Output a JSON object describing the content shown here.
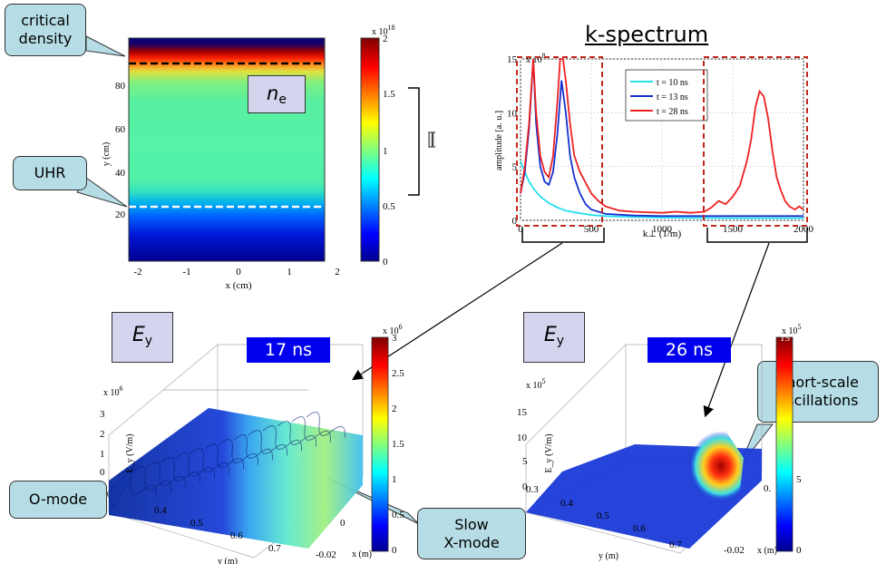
{
  "density_panel": {
    "label_base": "n",
    "label_sub": "e",
    "y_label": "y (cm)",
    "x_label": "x (cm)",
    "x_ticks": [
      "-2",
      "-1",
      "0",
      "1",
      "2"
    ],
    "y_ticks": [
      "20",
      "40",
      "60",
      "80"
    ],
    "colorbar_ticks": [
      "0",
      "0.5",
      "1",
      "1.5",
      "2"
    ],
    "colorbar_scale_base": "x 10",
    "colorbar_scale_exp": "18"
  },
  "callouts": {
    "critical": "critical\ndensity",
    "uhr": "UHR",
    "omode": "O-mode",
    "slowx": "Slow\nX-mode",
    "short": "Short-scale\noscillations"
  },
  "spectrum": {
    "heading": "k-spectrum",
    "scale_base": "x 10",
    "scale_exp": "8"
  },
  "chart_data": {
    "type": "line",
    "xlabel": "k⊥ (1/m)",
    "ylabel": "amplitude [a. u.]",
    "xlim": [
      0,
      2000
    ],
    "ylim": [
      0,
      15
    ],
    "x_ticks": [
      0,
      500,
      1000,
      1500,
      2000
    ],
    "y_ticks": [
      0,
      5,
      10,
      15
    ],
    "legend_position": "top-right",
    "series": [
      {
        "name": "t = 10 ns",
        "color": "#22e0ee",
        "x": [
          0,
          30,
          60,
          90,
          120,
          150,
          200,
          260,
          320,
          400,
          500,
          600,
          800,
          1000,
          1200,
          1500,
          1800,
          2000
        ],
        "y": [
          5.5,
          4.5,
          3.6,
          3.0,
          2.5,
          2.1,
          1.6,
          1.2,
          0.9,
          0.7,
          0.5,
          0.4,
          0.3,
          0.25,
          0.22,
          0.2,
          0.2,
          0.2
        ]
      },
      {
        "name": "t = 13 ns",
        "color": "#1530d0",
        "x": [
          0,
          30,
          60,
          90,
          110,
          140,
          170,
          200,
          230,
          260,
          290,
          320,
          350,
          380,
          420,
          460,
          500,
          600,
          800,
          1000,
          1300,
          1600,
          2000
        ],
        "y": [
          2.5,
          4.5,
          8.5,
          15,
          9,
          5,
          3.6,
          3.3,
          4.5,
          8,
          13,
          10,
          6,
          4,
          2.5,
          1.5,
          1.0,
          0.6,
          0.45,
          0.4,
          0.4,
          0.4,
          0.4
        ]
      },
      {
        "name": "t = 28 ns",
        "color": "#ee2020",
        "x": [
          0,
          30,
          60,
          90,
          110,
          140,
          170,
          200,
          230,
          260,
          280,
          300,
          320,
          350,
          380,
          420,
          460,
          500,
          550,
          600,
          700,
          800,
          900,
          1000,
          1100,
          1200,
          1300,
          1350,
          1400,
          1450,
          1500,
          1550,
          1600,
          1630,
          1660,
          1690,
          1720,
          1750,
          1780,
          1810,
          1840,
          1870,
          1900,
          1940,
          1970,
          2000
        ],
        "y": [
          2.5,
          5,
          9,
          15,
          10,
          6,
          4.5,
          4,
          6,
          11,
          15,
          15,
          13,
          9,
          6,
          4.5,
          3.5,
          2.5,
          1.8,
          1.3,
          0.9,
          0.8,
          0.75,
          0.7,
          0.8,
          0.7,
          0.8,
          1.2,
          1.8,
          1.5,
          2.2,
          3.2,
          5.5,
          7.5,
          10.5,
          12,
          11.5,
          9.5,
          6.5,
          4,
          2.8,
          1.8,
          1.3,
          1.0,
          1.3,
          1.0
        ]
      }
    ]
  },
  "ey_left": {
    "label_base": "E",
    "label_sub": "y",
    "time": "17 ns",
    "scale_base": "x 10",
    "scale_exp": "6",
    "z_ticks": [
      "0",
      "1",
      "2",
      "3"
    ],
    "z_label": "E_y (V/m)",
    "y_ticks": [
      "0.4",
      "0.5",
      "0.6",
      "0.7"
    ],
    "y_label": "y (m)",
    "x_ticks": [
      "0",
      "-0.02"
    ],
    "x_label": "x (m)",
    "colorbar_ticks": [
      "0",
      "0.5",
      "1",
      "1.5",
      "2",
      "2.5",
      "3"
    ],
    "colorbar_scale_base": "x 10",
    "colorbar_scale_exp": "6"
  },
  "ey_right": {
    "label_base": "E",
    "label_sub": "y",
    "time": "26 ns",
    "scale_base": "x 10",
    "scale_exp": "5",
    "z_ticks": [
      "0",
      "5",
      "10",
      "15"
    ],
    "z_label": "E_y (V/m)",
    "y_ticks": [
      "0.3",
      "0.4",
      "0.5",
      "0.6",
      "0.7"
    ],
    "y_label": "y (m)",
    "x_ticks": [
      "0.",
      "-0.02"
    ],
    "x_label": "x (m)",
    "colorbar_ticks": [
      "0",
      "5",
      "15"
    ],
    "colorbar_scale_base": "x 10",
    "colorbar_scale_exp": "5"
  }
}
